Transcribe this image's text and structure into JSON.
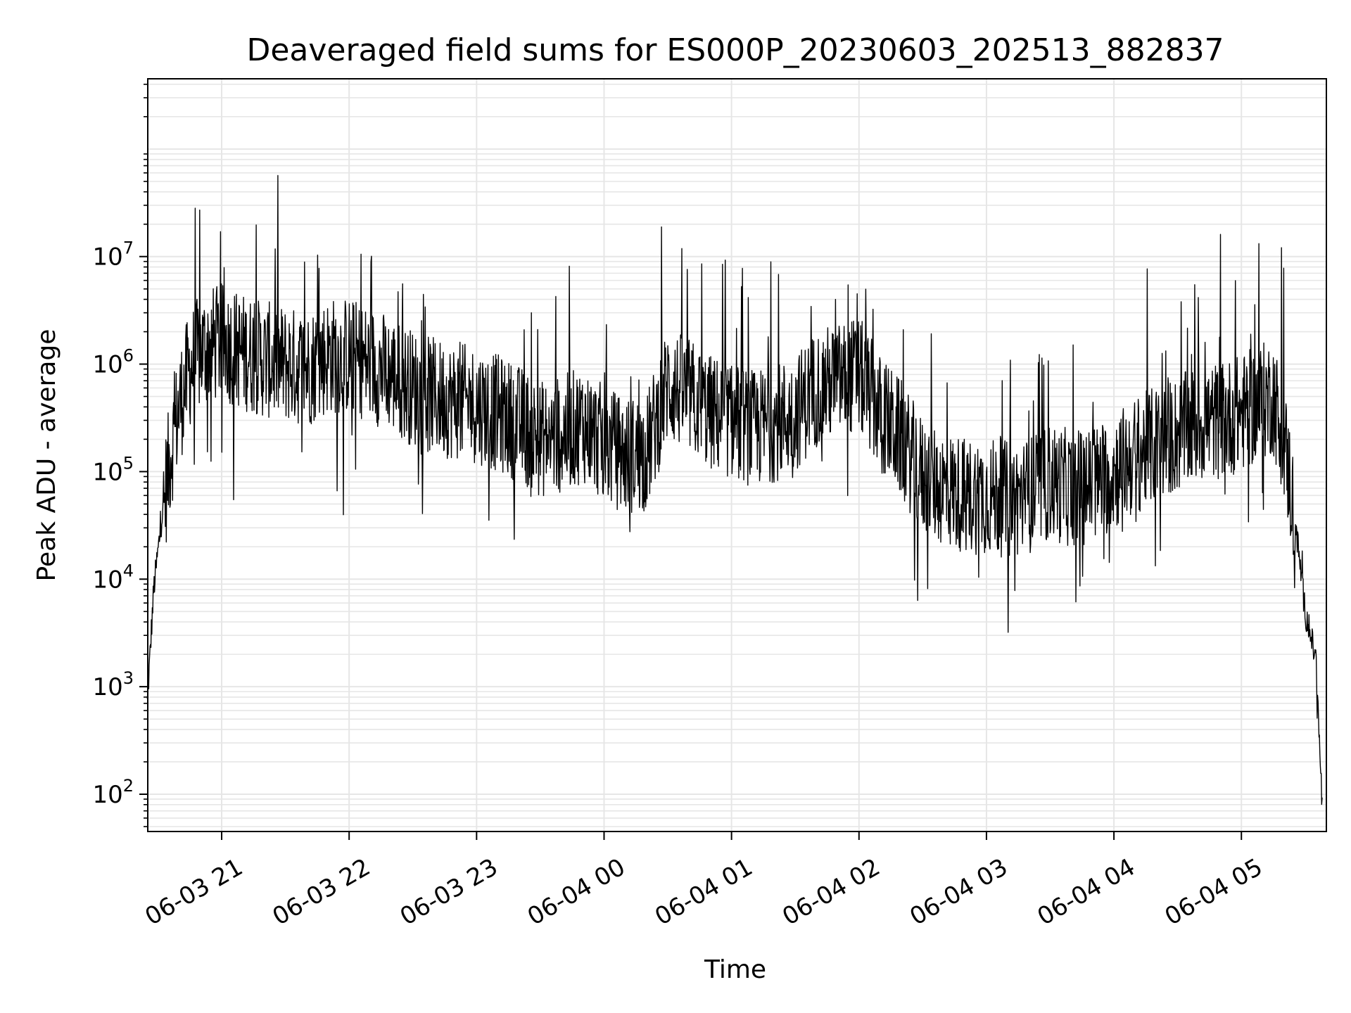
{
  "chart_data": {
    "type": "line",
    "title": "Deaveraged field sums for ES000P_20230603_202513_882837",
    "xlabel": "Time",
    "ylabel": "Peak ADU - average",
    "yscale": "log",
    "ylim": [
      45,
      450000000
    ],
    "xlim": [
      "2023-06-03 20:25:13",
      "2023-06-04 05:40:00"
    ],
    "grid": true,
    "line_color": "#000000",
    "grid_color": "#e6e6e6",
    "x_ticks": [
      {
        "value": "2023-06-03 21:00",
        "label": "06-03 21"
      },
      {
        "value": "2023-06-03 22:00",
        "label": "06-03 22"
      },
      {
        "value": "2023-06-03 23:00",
        "label": "06-03 23"
      },
      {
        "value": "2023-06-04 00:00",
        "label": "06-04 00"
      },
      {
        "value": "2023-06-04 01:00",
        "label": "06-04 01"
      },
      {
        "value": "2023-06-04 02:00",
        "label": "06-04 02"
      },
      {
        "value": "2023-06-04 03:00",
        "label": "06-04 03"
      },
      {
        "value": "2023-06-04 04:00",
        "label": "06-04 04"
      },
      {
        "value": "2023-06-04 05:00",
        "label": "06-04 05"
      }
    ],
    "y_ticks": [
      {
        "value": 100,
        "base": "10",
        "exp": "2"
      },
      {
        "value": 1000,
        "base": "10",
        "exp": "3"
      },
      {
        "value": 10000,
        "base": "10",
        "exp": "4"
      },
      {
        "value": 100000,
        "base": "10",
        "exp": "5"
      },
      {
        "value": 1000000,
        "base": "10",
        "exp": "6"
      },
      {
        "value": 10000000,
        "base": "10",
        "exp": "7"
      }
    ],
    "series": [
      {
        "x": [
          "2023-06-03 20:25",
          "2023-06-03 20:28",
          "2023-06-03 20:32",
          "2023-06-03 20:36",
          "2023-06-03 20:40",
          "2023-06-03 20:45",
          "2023-06-03 20:50",
          "2023-06-03 20:55",
          "2023-06-03 21:00",
          "2023-06-03 21:10",
          "2023-06-03 21:20",
          "2023-06-03 21:30",
          "2023-06-03 21:40",
          "2023-06-03 21:50",
          "2023-06-03 22:00",
          "2023-06-03 22:10",
          "2023-06-03 22:20",
          "2023-06-03 22:30",
          "2023-06-03 22:40",
          "2023-06-03 22:50",
          "2023-06-03 23:00",
          "2023-06-03 23:10",
          "2023-06-03 23:20",
          "2023-06-03 23:30",
          "2023-06-03 23:40",
          "2023-06-03 23:50",
          "2023-06-04 00:00",
          "2023-06-04 00:10",
          "2023-06-04 00:20",
          "2023-06-04 00:30",
          "2023-06-04 00:40",
          "2023-06-04 00:50",
          "2023-06-04 01:00",
          "2023-06-04 01:10",
          "2023-06-04 01:20",
          "2023-06-04 01:30",
          "2023-06-04 01:40",
          "2023-06-04 01:50",
          "2023-06-04 02:00",
          "2023-06-04 02:10",
          "2023-06-04 02:20",
          "2023-06-04 02:30",
          "2023-06-04 02:40",
          "2023-06-04 02:50",
          "2023-06-04 03:00",
          "2023-06-04 03:10",
          "2023-06-04 03:20",
          "2023-06-04 03:30",
          "2023-06-04 03:40",
          "2023-06-04 03:50",
          "2023-06-04 04:00",
          "2023-06-04 04:10",
          "2023-06-04 04:20",
          "2023-06-04 04:30",
          "2023-06-04 04:40",
          "2023-06-04 04:50",
          "2023-06-04 05:00",
          "2023-06-04 05:10",
          "2023-06-04 05:15",
          "2023-06-04 05:20",
          "2023-06-04 05:25",
          "2023-06-04 05:30",
          "2023-06-04 05:35",
          "2023-06-04 05:38"
        ],
        "y": [
          700,
          8000,
          40000,
          150000,
          400000,
          900000,
          1300000,
          1500000,
          1600000,
          1300000,
          1100000,
          1000000,
          900000,
          1200000,
          1200000,
          1000000,
          800000,
          600000,
          500000,
          450000,
          420000,
          350000,
          280000,
          200000,
          220000,
          280000,
          180000,
          140000,
          150000,
          650000,
          500000,
          350000,
          300000,
          250000,
          280000,
          350000,
          600000,
          700000,
          800000,
          350000,
          200000,
          90000,
          70000,
          60000,
          60000,
          55000,
          60000,
          80000,
          70000,
          75000,
          100000,
          140000,
          180000,
          220000,
          280000,
          300000,
          350000,
          450000,
          500000,
          200000,
          40000,
          5000,
          1800,
          80
        ]
      }
    ]
  }
}
